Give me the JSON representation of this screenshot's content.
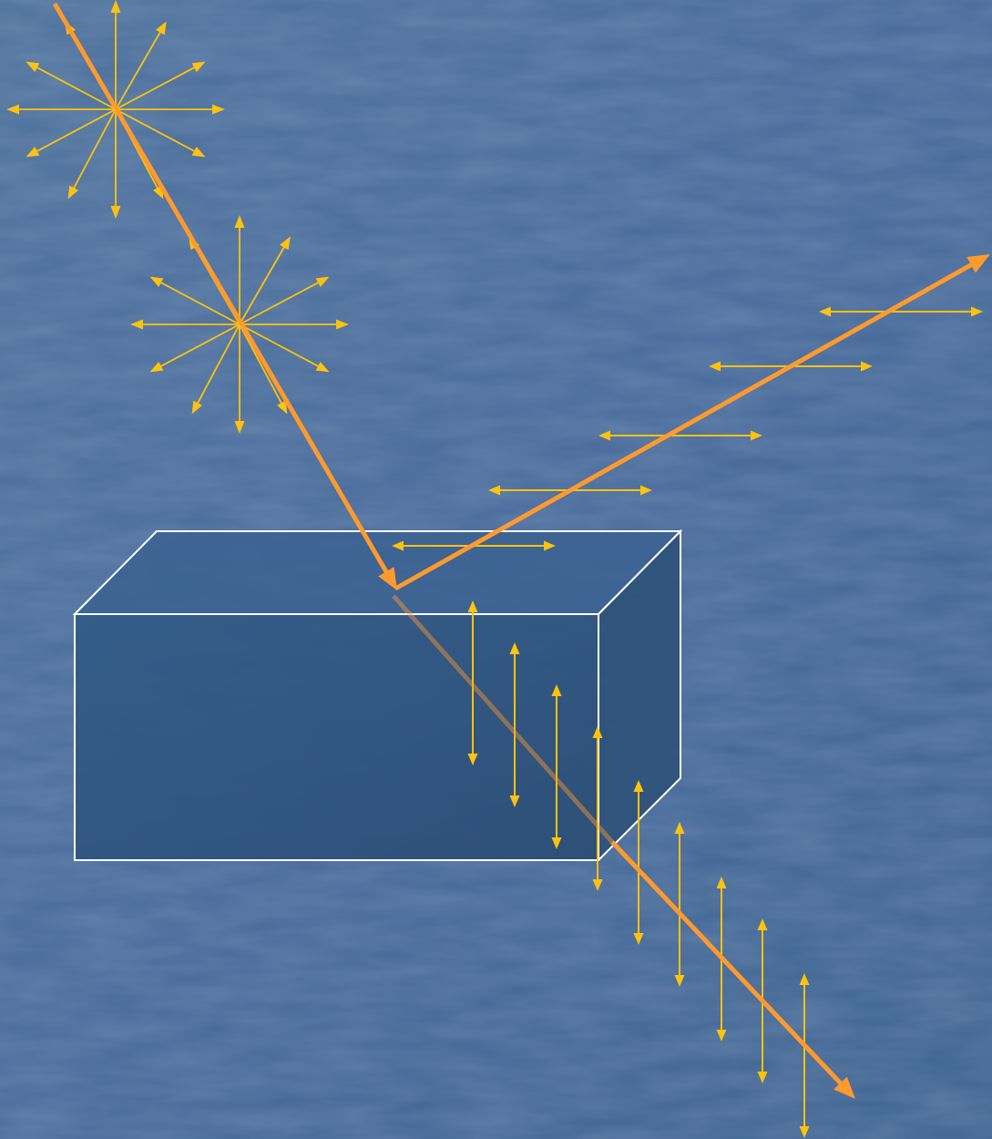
{
  "colors": {
    "background_top": "#4a6f9a",
    "background_bottom": "#3f6590",
    "ray": "#ff9a2e",
    "polarization_arrow": "#ffc20e",
    "box_front": "#2f5680",
    "box_top": "#3a6190",
    "box_side": "#2c4f78",
    "box_edge": "#ffffff"
  },
  "icons": {
    "incident_polarization": "unpolarized-star-icon",
    "reflected_polarization": "horizontal-double-arrow-icon",
    "transmitted_polarization": "vertical-double-arrow-icon"
  }
}
